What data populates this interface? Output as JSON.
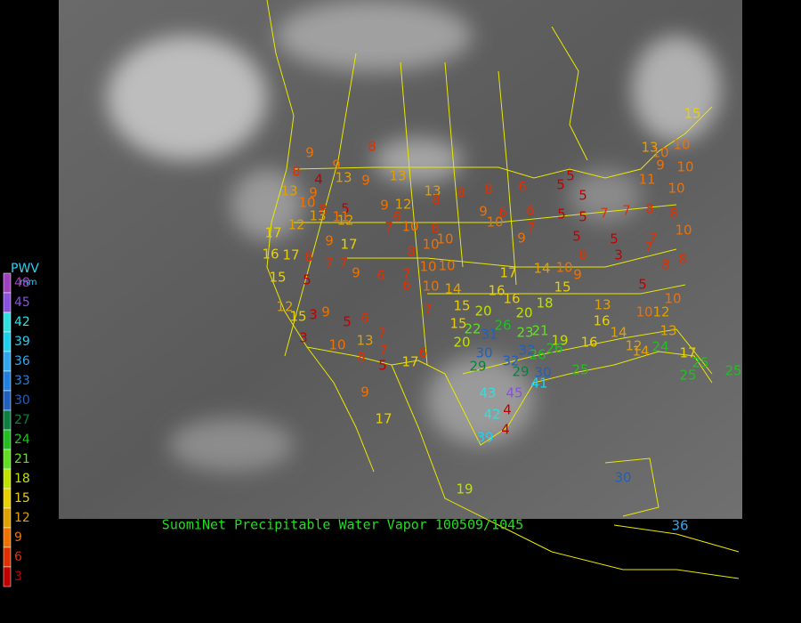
{
  "caption": "SuomiNet Precipitable Water Vapor 100509/1045",
  "legend": {
    "title": "PWV",
    "unit": "mm",
    "levels": [
      {
        "value": 48,
        "color": "#a040c0"
      },
      {
        "value": 45,
        "color": "#8a50e0"
      },
      {
        "value": 42,
        "color": "#30e0e0"
      },
      {
        "value": 39,
        "color": "#20d0f0"
      },
      {
        "value": 36,
        "color": "#30a8f0"
      },
      {
        "value": 33,
        "color": "#2080e0"
      },
      {
        "value": 30,
        "color": "#2060c0"
      },
      {
        "value": 27,
        "color": "#0a8040"
      },
      {
        "value": 24,
        "color": "#20c020"
      },
      {
        "value": 21,
        "color": "#60e020"
      },
      {
        "value": 18,
        "color": "#c0e000"
      },
      {
        "value": 15,
        "color": "#e8d000"
      },
      {
        "value": 12,
        "color": "#e0a000"
      },
      {
        "value": 9,
        "color": "#f07000"
      },
      {
        "value": 6,
        "color": "#e03000"
      },
      {
        "value": 3,
        "color": "#c00000"
      }
    ]
  },
  "stations": [
    8,
    8,
    9,
    9,
    4,
    13,
    9,
    13,
    13,
    8,
    8,
    6,
    5,
    5,
    5,
    13,
    9,
    10,
    8,
    5,
    11,
    9,
    6,
    12,
    8,
    9,
    6,
    6,
    5,
    5,
    7,
    7,
    8,
    8,
    17,
    12,
    13,
    12,
    7,
    10,
    8,
    10,
    10,
    7,
    9,
    5,
    5,
    7,
    10,
    16,
    17,
    8,
    9,
    7,
    17,
    7,
    9,
    8,
    10,
    10,
    10,
    17,
    14,
    10,
    8,
    9,
    3,
    7,
    8,
    8,
    15,
    5,
    6,
    7,
    6,
    10,
    14,
    16,
    15,
    16,
    18,
    12,
    15,
    3,
    9,
    5,
    6,
    7,
    15,
    20,
    20,
    13,
    10,
    12,
    10,
    5,
    3,
    10,
    13,
    7,
    8,
    7,
    5,
    6,
    17,
    15,
    22,
    31,
    26,
    23,
    21,
    19,
    20,
    30,
    32,
    32,
    26,
    26,
    29,
    29,
    30,
    41,
    16,
    16,
    14,
    12,
    24,
    13,
    17,
    25,
    25,
    25,
    43,
    45,
    42,
    4,
    39,
    4,
    9,
    17,
    19,
    30,
    36,
    10,
    13,
    10,
    10,
    15,
    10,
    11,
    9,
    25,
    14
  ]
}
